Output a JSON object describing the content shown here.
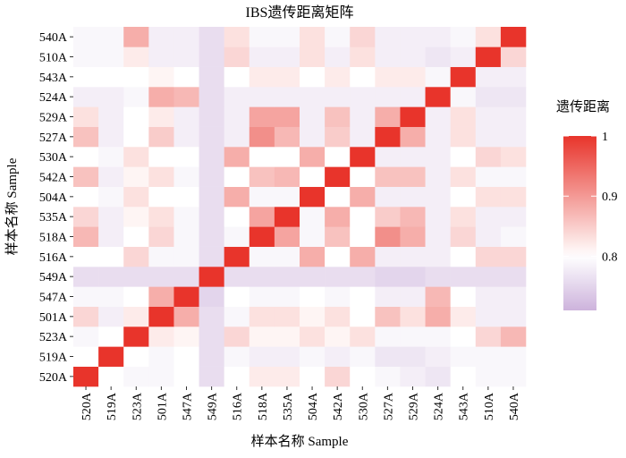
{
  "chart_data": {
    "type": "heatmap",
    "title": "IBS遗传距离矩阵",
    "x_label": "样本名称 Sample",
    "y_label": "样本名称 Sample",
    "x_categories": [
      "520A",
      "519A",
      "523A",
      "501A",
      "547A",
      "549A",
      "516A",
      "518A",
      "535A",
      "504A",
      "542A",
      "530A",
      "527A",
      "529A",
      "524A",
      "543A",
      "510A",
      "540A"
    ],
    "y_categories": [
      "520A",
      "519A",
      "523A",
      "501A",
      "547A",
      "549A",
      "516A",
      "518A",
      "535A",
      "504A",
      "542A",
      "530A",
      "527A",
      "529A",
      "524A",
      "543A",
      "510A",
      "540A"
    ],
    "values": [
      [
        1.0,
        0.8,
        0.79,
        0.79,
        0.8,
        0.76,
        0.8,
        0.82,
        0.82,
        0.8,
        0.84,
        0.8,
        0.79,
        0.78,
        0.77,
        0.8,
        0.79,
        0.79
      ],
      [
        0.8,
        1.0,
        0.8,
        0.79,
        0.8,
        0.76,
        0.79,
        0.78,
        0.78,
        0.79,
        0.78,
        0.79,
        0.77,
        0.77,
        0.78,
        0.79,
        0.79,
        0.79
      ],
      [
        0.79,
        0.8,
        1.0,
        0.82,
        0.81,
        0.76,
        0.84,
        0.81,
        0.81,
        0.83,
        0.81,
        0.83,
        0.79,
        0.79,
        0.79,
        0.8,
        0.84,
        0.87
      ],
      [
        0.84,
        0.78,
        0.82,
        1.0,
        0.88,
        0.76,
        0.79,
        0.83,
        0.83,
        0.81,
        0.83,
        0.8,
        0.86,
        0.83,
        0.88,
        0.82,
        0.78,
        0.78
      ],
      [
        0.79,
        0.79,
        0.8,
        0.88,
        1.0,
        0.75,
        0.8,
        0.79,
        0.79,
        0.8,
        0.79,
        0.8,
        0.78,
        0.78,
        0.87,
        0.8,
        0.78,
        0.78
      ],
      [
        0.76,
        0.76,
        0.76,
        0.76,
        0.76,
        1.0,
        0.76,
        0.76,
        0.76,
        0.76,
        0.76,
        0.76,
        0.75,
        0.75,
        0.76,
        0.76,
        0.76,
        0.76
      ],
      [
        0.8,
        0.8,
        0.84,
        0.79,
        0.79,
        0.76,
        1.0,
        0.79,
        0.79,
        0.88,
        0.8,
        0.88,
        0.78,
        0.78,
        0.78,
        0.8,
        0.84,
        0.84
      ],
      [
        0.87,
        0.78,
        0.8,
        0.84,
        0.79,
        0.76,
        0.79,
        1.0,
        0.89,
        0.79,
        0.86,
        0.8,
        0.91,
        0.88,
        0.78,
        0.84,
        0.78,
        0.79
      ],
      [
        0.84,
        0.78,
        0.81,
        0.83,
        0.79,
        0.76,
        0.8,
        0.89,
        1.0,
        0.79,
        0.88,
        0.8,
        0.85,
        0.87,
        0.78,
        0.83,
        0.78,
        0.78
      ],
      [
        0.8,
        0.79,
        0.83,
        0.8,
        0.8,
        0.76,
        0.88,
        0.79,
        0.79,
        1.0,
        0.8,
        0.88,
        0.78,
        0.78,
        0.78,
        0.8,
        0.83,
        0.83
      ],
      [
        0.86,
        0.78,
        0.81,
        0.83,
        0.79,
        0.76,
        0.8,
        0.86,
        0.87,
        0.8,
        1.0,
        0.8,
        0.86,
        0.86,
        0.78,
        0.83,
        0.79,
        0.79
      ],
      [
        0.8,
        0.79,
        0.83,
        0.8,
        0.8,
        0.76,
        0.88,
        0.8,
        0.8,
        0.88,
        0.8,
        1.0,
        0.78,
        0.78,
        0.78,
        0.8,
        0.84,
        0.83
      ],
      [
        0.86,
        0.78,
        0.8,
        0.85,
        0.78,
        0.76,
        0.78,
        0.91,
        0.87,
        0.78,
        0.85,
        0.78,
        1.0,
        0.88,
        0.78,
        0.83,
        0.78,
        0.78
      ],
      [
        0.83,
        0.78,
        0.8,
        0.82,
        0.78,
        0.76,
        0.78,
        0.89,
        0.89,
        0.78,
        0.86,
        0.78,
        0.88,
        1.0,
        0.78,
        0.83,
        0.78,
        0.78
      ],
      [
        0.78,
        0.78,
        0.79,
        0.88,
        0.87,
        0.76,
        0.78,
        0.78,
        0.78,
        0.78,
        0.78,
        0.78,
        0.78,
        0.78,
        1.0,
        0.79,
        0.77,
        0.77
      ],
      [
        0.8,
        0.8,
        0.8,
        0.81,
        0.8,
        0.76,
        0.8,
        0.82,
        0.82,
        0.8,
        0.82,
        0.8,
        0.82,
        0.82,
        0.79,
        1.0,
        0.78,
        0.78
      ],
      [
        0.79,
        0.79,
        0.82,
        0.78,
        0.78,
        0.76,
        0.84,
        0.78,
        0.78,
        0.83,
        0.78,
        0.83,
        0.78,
        0.78,
        0.77,
        0.78,
        1.0,
        0.84
      ],
      [
        0.79,
        0.79,
        0.88,
        0.78,
        0.78,
        0.76,
        0.83,
        0.79,
        0.79,
        0.83,
        0.79,
        0.84,
        0.78,
        0.78,
        0.78,
        0.79,
        0.83,
        1.0
      ]
    ],
    "legend_title": "遗传距离",
    "clim": [
      0.71,
      1.0
    ],
    "cticks": [
      0.8,
      0.9,
      1.0
    ],
    "color_low": "#cdb3dc",
    "color_mid": "#ffffff",
    "color_high": "#e8342b",
    "color_midpoint": 0.8
  }
}
